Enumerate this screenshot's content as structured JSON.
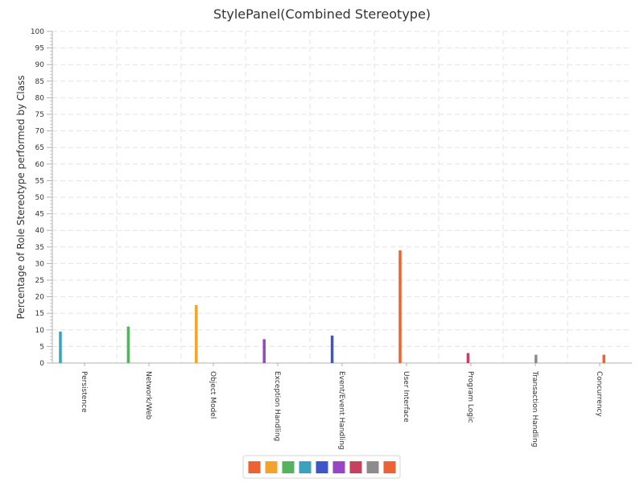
{
  "chart_data": {
    "type": "bar",
    "title": "StylePanel(Combined Stereotype)",
    "xlabel": "",
    "ylabel": "Percentage of Role Stereotype performed by Class",
    "ylim": [
      0,
      100
    ],
    "ytick_step": 5,
    "grid": true,
    "legend_placement": "bottom-center",
    "categories": [
      "Persistence",
      "Network/Web",
      "Object Model",
      "Exception Handling",
      "Event/Event Handling",
      "User Interface",
      "Program Logic",
      "Transaction Handling",
      "Concurrency"
    ],
    "series": [
      {
        "color": "#3aa2bd",
        "values": [
          9.5,
          0,
          0,
          0,
          0,
          0,
          0,
          0,
          0
        ]
      },
      {
        "color": "#55b25e",
        "values": [
          0,
          11,
          0,
          0,
          0,
          0,
          0,
          0,
          0
        ]
      },
      {
        "color": "#f3a32a",
        "values": [
          0,
          0,
          17.5,
          0,
          0,
          0,
          0,
          0,
          0
        ]
      },
      {
        "color": "#9a46c4",
        "values": [
          0,
          0,
          0,
          7.2,
          0,
          0,
          0,
          0,
          0
        ]
      },
      {
        "color": "#3f56c8",
        "values": [
          0,
          0,
          0,
          0,
          8.3,
          0,
          0,
          0,
          0
        ]
      },
      {
        "color": "#ec6232",
        "values": [
          0,
          0,
          0,
          0,
          0,
          34,
          0,
          0,
          0
        ]
      },
      {
        "color": "#c7415f",
        "values": [
          0,
          0,
          0,
          0,
          0,
          0,
          3,
          0,
          0
        ]
      },
      {
        "color": "#8c8c8c",
        "values": [
          0,
          0,
          0,
          0,
          0,
          0,
          0,
          2.5,
          0
        ]
      },
      {
        "color": "#ec6232",
        "values": [
          0,
          0,
          0,
          0,
          0,
          0,
          0,
          0,
          2.5
        ]
      }
    ],
    "legend_swatches": [
      "#ec6232",
      "#f3a32a",
      "#55b25e",
      "#3aa2bd",
      "#3f56c8",
      "#9a46c4",
      "#c7415f",
      "#8c8c8c",
      "#ec6232"
    ]
  }
}
